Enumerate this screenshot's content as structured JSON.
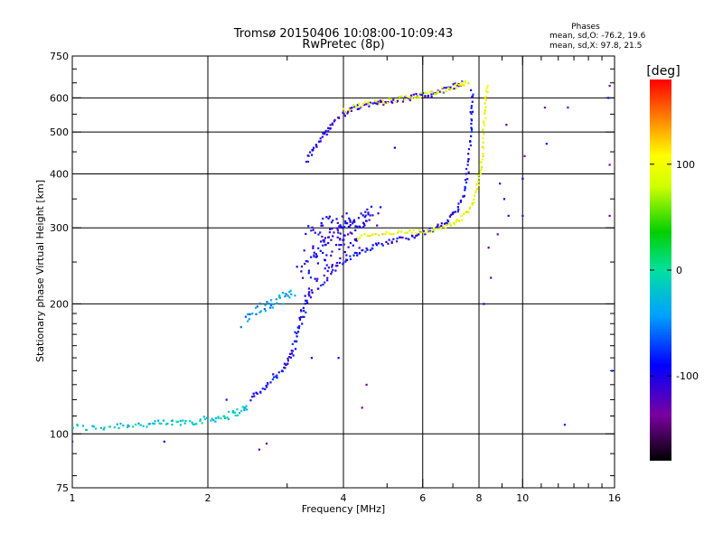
{
  "chart_data": {
    "type": "scatter",
    "title": "Tromsø 20150406 10:08:00-10:09:43",
    "subtitle": "RwPretec (8p)",
    "xlabel": "Frequency [MHz]",
    "ylabel": "Stationary phase Virtual Height [km]",
    "x_scale": "log",
    "y_scale": "log",
    "xlim": [
      1,
      16
    ],
    "ylim": [
      75,
      750
    ],
    "x_ticks": [
      1,
      2,
      4,
      6,
      8,
      10,
      16
    ],
    "x_tick_labels": [
      "1",
      "2",
      "4",
      "6",
      "8",
      "10",
      "16"
    ],
    "y_ticks": [
      75,
      100,
      200,
      300,
      400,
      500,
      600,
      750
    ],
    "y_tick_labels": [
      "75",
      "100",
      "200",
      "300",
      "400",
      "500",
      "600",
      "750"
    ],
    "x_minor_ticks": [
      3,
      5,
      7,
      9,
      11,
      12,
      13,
      14,
      15
    ],
    "y_minor_ticks": [
      80,
      90,
      110,
      120,
      130,
      140,
      150,
      160,
      170,
      180,
      190,
      250,
      350,
      450,
      550,
      650,
      700
    ],
    "grid": true,
    "stats": {
      "title": "Phases",
      "line_o": "mean, sd,O: -76.2, 19.6",
      "line_x": "mean, sd,X:  97.8, 21.5"
    },
    "colorbar": {
      "label": "[deg]",
      "min": -180,
      "max": 180,
      "ticks": [
        100,
        0,
        -100
      ],
      "tick_labels": [
        "100",
        "0",
        "-100"
      ],
      "palette": "rainbow"
    },
    "traces": [
      {
        "name": "low_band",
        "phase": -20,
        "spread": 0.018,
        "points": [
          [
            1.0,
            104
          ],
          [
            1.1,
            103
          ],
          [
            1.2,
            104
          ],
          [
            1.3,
            105
          ],
          [
            1.4,
            105
          ],
          [
            1.5,
            105
          ],
          [
            1.6,
            106
          ],
          [
            1.7,
            106
          ],
          [
            1.8,
            107
          ],
          [
            1.9,
            107
          ],
          [
            2.0,
            108
          ],
          [
            2.1,
            109
          ],
          [
            2.2,
            110
          ],
          [
            2.3,
            112
          ],
          [
            2.4,
            114
          ],
          [
            2.45,
            116
          ]
        ]
      },
      {
        "name": "low_rise",
        "phase": -95,
        "spread": 0.02,
        "points": [
          [
            2.5,
            120
          ],
          [
            2.6,
            125
          ],
          [
            2.7,
            130
          ],
          [
            2.8,
            135
          ],
          [
            2.9,
            140
          ],
          [
            3.0,
            145
          ],
          [
            3.05,
            150
          ],
          [
            3.1,
            160
          ],
          [
            3.15,
            170
          ],
          [
            3.2,
            180
          ],
          [
            3.25,
            190
          ],
          [
            3.3,
            200
          ],
          [
            3.35,
            210
          ],
          [
            3.4,
            220
          ]
        ]
      },
      {
        "name": "low_o_scatter",
        "phase": -45,
        "spread": 0.025,
        "points": [
          [
            2.4,
            180
          ],
          [
            2.5,
            190
          ],
          [
            2.6,
            196
          ],
          [
            2.7,
            198
          ],
          [
            2.8,
            200
          ],
          [
            2.9,
            205
          ],
          [
            3.0,
            210
          ],
          [
            3.1,
            212
          ]
        ]
      },
      {
        "name": "f_cloud",
        "phase": -100,
        "spread": 0.05,
        "points": [
          [
            3.2,
            240
          ],
          [
            3.3,
            250
          ],
          [
            3.4,
            260
          ],
          [
            3.5,
            270
          ],
          [
            3.6,
            275
          ],
          [
            3.7,
            280
          ],
          [
            3.8,
            285
          ],
          [
            3.9,
            290
          ],
          [
            4.0,
            295
          ],
          [
            4.1,
            300
          ],
          [
            4.2,
            305
          ],
          [
            4.3,
            310
          ],
          [
            4.4,
            312
          ],
          [
            4.5,
            315
          ],
          [
            4.6,
            318
          ],
          [
            4.7,
            320
          ],
          [
            3.3,
            290
          ],
          [
            3.5,
            300
          ],
          [
            3.7,
            310
          ],
          [
            3.9,
            320
          ],
          [
            4.1,
            300
          ],
          [
            3.4,
            230
          ],
          [
            3.6,
            240
          ],
          [
            3.8,
            255
          ],
          [
            4.0,
            265
          ],
          [
            4.2,
            270
          ],
          [
            4.4,
            280
          ]
        ]
      },
      {
        "name": "o_trace_f2",
        "phase": -95,
        "spread": 0.012,
        "points": [
          [
            3.5,
            215
          ],
          [
            3.7,
            230
          ],
          [
            3.9,
            245
          ],
          [
            4.1,
            255
          ],
          [
            4.3,
            262
          ],
          [
            4.5,
            268
          ],
          [
            4.7,
            273
          ],
          [
            5.0,
            278
          ],
          [
            5.3,
            282
          ],
          [
            5.6,
            286
          ],
          [
            5.9,
            290
          ],
          [
            6.2,
            295
          ],
          [
            6.5,
            302
          ],
          [
            6.8,
            310
          ],
          [
            7.0,
            320
          ],
          [
            7.2,
            335
          ],
          [
            7.4,
            360
          ],
          [
            7.5,
            390
          ],
          [
            7.6,
            430
          ],
          [
            7.65,
            480
          ],
          [
            7.7,
            530
          ],
          [
            7.72,
            580
          ],
          [
            7.73,
            630
          ]
        ]
      },
      {
        "name": "x_trace_f2",
        "phase": 100,
        "spread": 0.01,
        "points": [
          [
            4.3,
            285
          ],
          [
            4.6,
            290
          ],
          [
            5.0,
            292
          ],
          [
            5.4,
            293
          ],
          [
            5.8,
            294
          ],
          [
            6.2,
            296
          ],
          [
            6.6,
            300
          ],
          [
            7.0,
            306
          ],
          [
            7.3,
            315
          ],
          [
            7.6,
            330
          ],
          [
            7.8,
            350
          ],
          [
            7.95,
            380
          ],
          [
            8.05,
            410
          ],
          [
            8.15,
            450
          ],
          [
            8.2,
            500
          ],
          [
            8.25,
            550
          ],
          [
            8.3,
            600
          ],
          [
            8.35,
            640
          ]
        ]
      },
      {
        "name": "upper_band_o",
        "phase": -105,
        "spread": 0.015,
        "points": [
          [
            3.3,
            430
          ],
          [
            3.4,
            450
          ],
          [
            3.5,
            470
          ],
          [
            3.6,
            490
          ],
          [
            3.7,
            510
          ],
          [
            3.8,
            530
          ],
          [
            4.0,
            550
          ],
          [
            4.2,
            565
          ],
          [
            4.4,
            575
          ],
          [
            4.6,
            580
          ],
          [
            4.8,
            585
          ],
          [
            5.0,
            590
          ],
          [
            5.3,
            595
          ],
          [
            5.6,
            600
          ],
          [
            5.9,
            605
          ],
          [
            6.2,
            610
          ],
          [
            6.5,
            620
          ],
          [
            6.8,
            630
          ],
          [
            7.1,
            640
          ],
          [
            7.4,
            650
          ]
        ]
      },
      {
        "name": "upper_band_x",
        "phase": 95,
        "spread": 0.012,
        "points": [
          [
            4.0,
            560
          ],
          [
            4.3,
            575
          ],
          [
            4.6,
            585
          ],
          [
            5.0,
            590
          ],
          [
            5.4,
            598
          ],
          [
            5.8,
            605
          ],
          [
            6.2,
            615
          ],
          [
            6.6,
            625
          ],
          [
            7.0,
            635
          ],
          [
            7.3,
            645
          ],
          [
            7.6,
            655
          ]
        ]
      },
      {
        "name": "stray",
        "phase": -110,
        "spread": 0.0,
        "points": [
          [
            8.9,
            380
          ],
          [
            9.1,
            350
          ],
          [
            9.3,
            320
          ],
          [
            10.0,
            390
          ],
          [
            10.0,
            320
          ],
          [
            10.1,
            440
          ],
          [
            8.4,
            270
          ],
          [
            8.5,
            230
          ],
          [
            8.2,
            200
          ],
          [
            11.2,
            570
          ],
          [
            11.3,
            470
          ],
          [
            12.6,
            570
          ],
          [
            15.6,
            640
          ],
          [
            15.5,
            600
          ],
          [
            15.6,
            420
          ],
          [
            15.6,
            320
          ],
          [
            15.8,
            140
          ],
          [
            12.4,
            105
          ],
          [
            4.4,
            115
          ],
          [
            3.9,
            150
          ],
          [
            3.4,
            150
          ],
          [
            2.7,
            95
          ],
          [
            2.6,
            92
          ],
          [
            1.6,
            96
          ],
          [
            1.0,
            96
          ],
          [
            2.2,
            120
          ],
          [
            5.2,
            460
          ],
          [
            9.2,
            520
          ],
          [
            8.8,
            290
          ],
          [
            4.5,
            130
          ]
        ]
      }
    ]
  }
}
